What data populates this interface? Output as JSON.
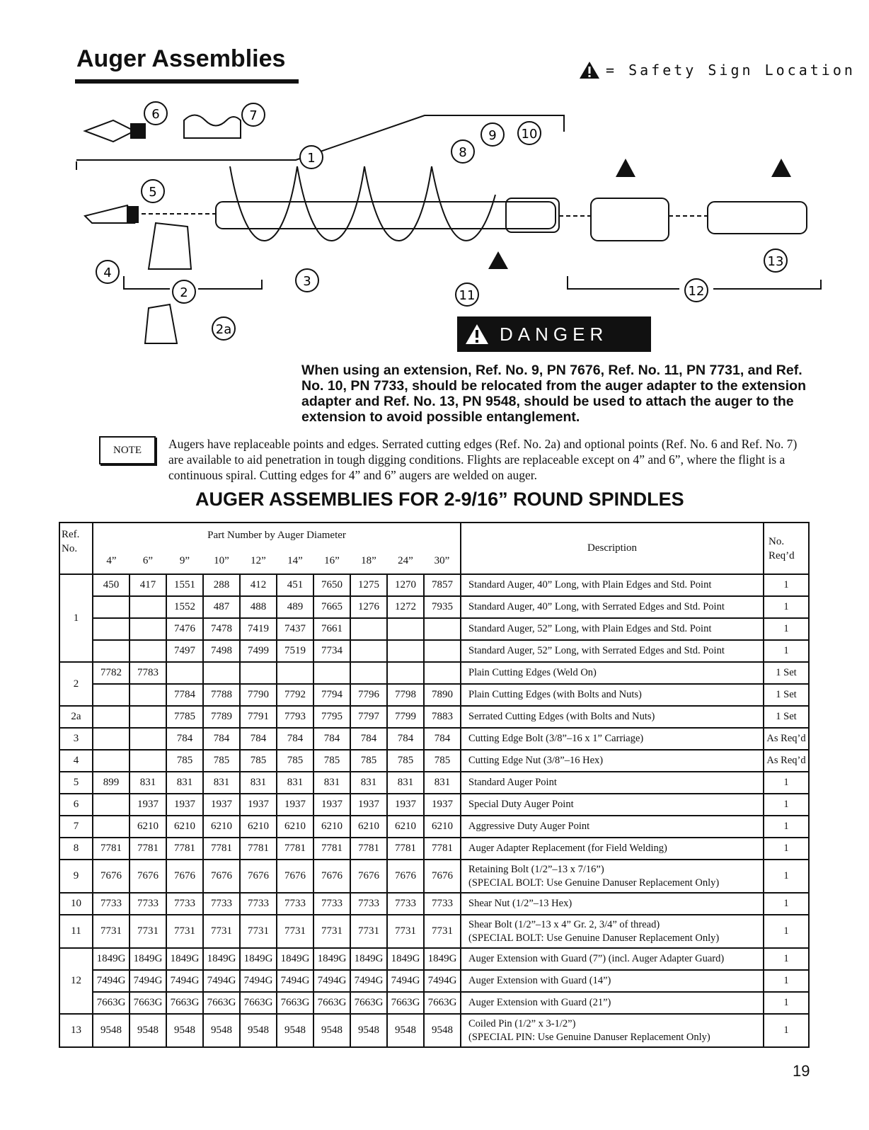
{
  "title": "Auger Assemblies",
  "safety_legend": "= Safety Sign Location",
  "callouts": [
    "6",
    "7",
    "1",
    "9",
    "10",
    "8",
    "5",
    "4",
    "2",
    "3",
    "11",
    "12",
    "13",
    "2a"
  ],
  "danger_label": "DANGER",
  "danger_text": "When using an extension, Ref. No. 9, PN 7676, Ref. No. 11, PN 7731, and Ref. No. 10, PN 7733, should be relocated from the auger adapter to the extension adapter and Ref. No. 13, PN 9548, should be used to attach the auger to the extension to avoid possible entanglement.",
  "note_label": "NOTE",
  "note_text": "Augers have replaceable points and edges.  Serrated cutting edges (Ref. No. 2a) and optional points (Ref. No. 6 and Ref. No. 7) are available to aid penetration in tough digging conditions.  Flights are replaceable except on 4” and 6”, where the flight is a continuous spiral.  Cutting edges for 4” and 6” augers are welded on auger.",
  "table_title": "AUGER ASSEMBLIES FOR 2-9/16” ROUND SPINDLES",
  "table": {
    "ref_header": "Ref. No.",
    "group_header": "Part Number by Auger Diameter",
    "diameters": [
      "4”",
      "6”",
      "9”",
      "10”",
      "12”",
      "14”",
      "16”",
      "18”",
      "24”",
      "30”"
    ],
    "desc_header": "Description",
    "req_header": "No. Req’d",
    "rows": [
      {
        "ref": "1",
        "span": 4,
        "parts": [
          "450",
          "417",
          "1551",
          "288",
          "412",
          "451",
          "7650",
          "1275",
          "1270",
          "7857"
        ],
        "desc": [
          "Standard Auger, 40” Long, with Plain Edges and Std. Point"
        ],
        "req": "1"
      },
      {
        "parts": [
          "",
          "",
          "1552",
          "487",
          "488",
          "489",
          "7665",
          "1276",
          "1272",
          "7935"
        ],
        "desc": [
          "Standard Auger, 40” Long, with Serrated Edges and Std. Point"
        ],
        "req": "1"
      },
      {
        "parts": [
          "",
          "",
          "7476",
          "7478",
          "7419",
          "7437",
          "7661",
          "",
          "",
          ""
        ],
        "desc": [
          "Standard Auger, 52” Long, with Plain Edges and Std. Point"
        ],
        "req": "1"
      },
      {
        "parts": [
          "",
          "",
          "7497",
          "7498",
          "7499",
          "7519",
          "7734",
          "",
          "",
          ""
        ],
        "desc": [
          "Standard Auger, 52” Long, with Serrated Edges and Std. Point"
        ],
        "req": "1"
      },
      {
        "ref": "2",
        "span": 2,
        "parts": [
          "7782",
          "7783",
          "",
          "",
          "",
          "",
          "",
          "",
          "",
          ""
        ],
        "desc": [
          "Plain Cutting Edges (Weld On)"
        ],
        "req": "1 Set"
      },
      {
        "parts": [
          "",
          "",
          "7784",
          "7788",
          "7790",
          "7792",
          "7794",
          "7796",
          "7798",
          "7890"
        ],
        "desc": [
          "Plain Cutting Edges (with Bolts and Nuts)"
        ],
        "req": "1 Set"
      },
      {
        "ref": "2a",
        "span": 1,
        "parts": [
          "",
          "",
          "7785",
          "7789",
          "7791",
          "7793",
          "7795",
          "7797",
          "7799",
          "7883"
        ],
        "desc": [
          "Serrated Cutting Edges (with Bolts and Nuts)"
        ],
        "req": "1 Set"
      },
      {
        "ref": "3",
        "span": 1,
        "parts": [
          "",
          "",
          "784",
          "784",
          "784",
          "784",
          "784",
          "784",
          "784",
          "784"
        ],
        "desc": [
          "Cutting Edge Bolt (3/8”–16 x 1” Carriage)"
        ],
        "req": "As Req’d"
      },
      {
        "ref": "4",
        "span": 1,
        "parts": [
          "",
          "",
          "785",
          "785",
          "785",
          "785",
          "785",
          "785",
          "785",
          "785"
        ],
        "desc": [
          "Cutting Edge Nut (3/8”–16 Hex)"
        ],
        "req": "As Req’d"
      },
      {
        "ref": "5",
        "span": 1,
        "parts": [
          "899",
          "831",
          "831",
          "831",
          "831",
          "831",
          "831",
          "831",
          "831",
          "831"
        ],
        "desc": [
          "Standard Auger Point"
        ],
        "req": "1"
      },
      {
        "ref": "6",
        "span": 1,
        "parts": [
          "",
          "1937",
          "1937",
          "1937",
          "1937",
          "1937",
          "1937",
          "1937",
          "1937",
          "1937"
        ],
        "desc": [
          "Special Duty Auger Point"
        ],
        "req": "1"
      },
      {
        "ref": "7",
        "span": 1,
        "parts": [
          "",
          "6210",
          "6210",
          "6210",
          "6210",
          "6210",
          "6210",
          "6210",
          "6210",
          "6210"
        ],
        "desc": [
          "Aggressive Duty Auger Point"
        ],
        "req": "1"
      },
      {
        "ref": "8",
        "span": 1,
        "parts": [
          "7781",
          "7781",
          "7781",
          "7781",
          "7781",
          "7781",
          "7781",
          "7781",
          "7781",
          "7781"
        ],
        "desc": [
          "Auger Adapter Replacement (for Field Welding)"
        ],
        "req": "1"
      },
      {
        "ref": "9",
        "span": 1,
        "parts": [
          "7676",
          "7676",
          "7676",
          "7676",
          "7676",
          "7676",
          "7676",
          "7676",
          "7676",
          "7676"
        ],
        "desc": [
          "Retaining Bolt (1/2”–13 x 7/16”)",
          "(SPECIAL BOLT: Use Genuine Danuser Replacement Only)"
        ],
        "req": "1"
      },
      {
        "ref": "10",
        "span": 1,
        "parts": [
          "7733",
          "7733",
          "7733",
          "7733",
          "7733",
          "7733",
          "7733",
          "7733",
          "7733",
          "7733"
        ],
        "desc": [
          "Shear Nut (1/2”–13 Hex)"
        ],
        "req": "1"
      },
      {
        "ref": "11",
        "span": 1,
        "parts": [
          "7731",
          "7731",
          "7731",
          "7731",
          "7731",
          "7731",
          "7731",
          "7731",
          "7731",
          "7731"
        ],
        "desc": [
          "Shear Bolt (1/2”–13 x 4” Gr. 2, 3/4” of thread)",
          "(SPECIAL BOLT: Use Genuine Danuser Replacement Only)"
        ],
        "req": "1"
      },
      {
        "ref": "12",
        "span": 3,
        "parts": [
          "1849G",
          "1849G",
          "1849G",
          "1849G",
          "1849G",
          "1849G",
          "1849G",
          "1849G",
          "1849G",
          "1849G"
        ],
        "desc": [
          "Auger Extension with Guard (7”) (incl. Auger Adapter Guard)"
        ],
        "req": "1"
      },
      {
        "parts": [
          "7494G",
          "7494G",
          "7494G",
          "7494G",
          "7494G",
          "7494G",
          "7494G",
          "7494G",
          "7494G",
          "7494G"
        ],
        "desc": [
          "Auger Extension with Guard (14”)"
        ],
        "req": "1"
      },
      {
        "parts": [
          "7663G",
          "7663G",
          "7663G",
          "7663G",
          "7663G",
          "7663G",
          "7663G",
          "7663G",
          "7663G",
          "7663G"
        ],
        "desc": [
          "Auger Extension with Guard (21”)"
        ],
        "req": "1"
      },
      {
        "ref": "13",
        "span": 1,
        "parts": [
          "9548",
          "9548",
          "9548",
          "9548",
          "9548",
          "9548",
          "9548",
          "9548",
          "9548",
          "9548"
        ],
        "desc": [
          "Coiled Pin (1/2” x 3-1/2”)",
          "(SPECIAL PIN: Use Genuine Danuser Replacement Only)"
        ],
        "req": "1"
      }
    ]
  },
  "page_number": "19"
}
